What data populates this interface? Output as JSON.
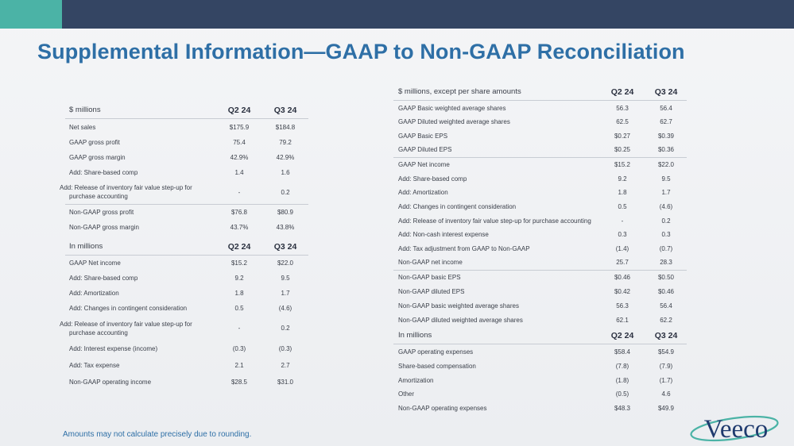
{
  "title": "Supplemental Information—GAAP to Non-GAAP Reconciliation",
  "footnote": "Amounts may not calculate precisely due to rounding.",
  "logo_text": "Veeco",
  "colors": {
    "topbar": "#344563",
    "accent": "#4bb3a6",
    "title": "#2e6fa6"
  },
  "left_top": {
    "header": "$ millions",
    "col1": "Q2 24",
    "col2": "Q3 24",
    "rows": [
      [
        "Net sales",
        "$175.9",
        "$184.8"
      ],
      [
        "GAAP gross profit",
        "75.4",
        "79.2"
      ],
      [
        "GAAP gross margin",
        "42.9%",
        "42.9%"
      ],
      [
        "Add: Share-based comp",
        "1.4",
        "1.6"
      ],
      [
        "Add: Release of inventory fair value step-up for purchase accounting",
        "-",
        "0.2"
      ],
      [
        "Non-GAAP gross profit",
        "$76.8",
        "$80.9"
      ],
      [
        "Non-GAAP gross margin",
        "43.7%",
        "43.8%"
      ]
    ]
  },
  "left_bottom": {
    "header": "In millions",
    "col1": "Q2 24",
    "col2": "Q3 24",
    "rows": [
      [
        "GAAP Net income",
        "$15.2",
        "$22.0"
      ],
      [
        "Add: Share-based comp",
        "9.2",
        "9.5"
      ],
      [
        "Add: Amortization",
        "1.8",
        "1.7"
      ],
      [
        "Add: Changes in contingent consideration",
        "0.5",
        "(4.6)"
      ],
      [
        "Add: Release of inventory fair value step-up for purchase accounting",
        "-",
        "0.2"
      ],
      [
        "Add: Interest expense (income)",
        "(0.3)",
        "(0.3)"
      ],
      [
        "Add: Tax expense",
        "2.1",
        "2.7"
      ],
      [
        "Non-GAAP operating income",
        "$28.5",
        "$31.0"
      ]
    ]
  },
  "right_top": {
    "header": "$ millions, except per share amounts",
    "col1": "Q2 24",
    "col2": "Q3 24",
    "rows": [
      [
        "GAAP Basic weighted average shares",
        "56.3",
        "56.4"
      ],
      [
        "GAAP Diluted weighted average shares",
        "62.5",
        "62.7"
      ],
      [
        "GAAP Basic EPS",
        "$0.27",
        "$0.39"
      ],
      [
        "GAAP Diluted EPS",
        "$0.25",
        "$0.36"
      ],
      [
        "GAAP Net income",
        "$15.2",
        "$22.0"
      ],
      [
        "Add: Share-based comp",
        "9.2",
        "9.5"
      ],
      [
        "Add: Amortization",
        "1.8",
        "1.7"
      ],
      [
        "Add: Changes in contingent consideration",
        "0.5",
        "(4.6)"
      ],
      [
        "Add: Release of inventory fair value step-up for purchase accounting",
        "-",
        "0.2"
      ],
      [
        "Add: Non-cash interest expense",
        "0.3",
        "0.3"
      ],
      [
        "Add: Tax adjustment from GAAP to Non-GAAP",
        "(1.4)",
        "(0.7)"
      ],
      [
        "Non-GAAP net income",
        "25.7",
        "28.3"
      ],
      [
        "Non-GAAP basic EPS",
        "$0.46",
        "$0.50"
      ],
      [
        "Non-GAAP diluted EPS",
        "$0.42",
        "$0.46"
      ],
      [
        "Non-GAAP basic weighted average shares",
        "56.3",
        "56.4"
      ],
      [
        "Non-GAAP diluted weighted average shares",
        "62.1",
        "62.2"
      ]
    ]
  },
  "right_bottom": {
    "header": "In millions",
    "col1": "Q2 24",
    "col2": "Q3 24",
    "rows": [
      [
        "GAAP operating expenses",
        "$58.4",
        "$54.9"
      ],
      [
        "Share-based compensation",
        "(7.8)",
        "(7.9)"
      ],
      [
        "Amortization",
        "(1.8)",
        "(1.7)"
      ],
      [
        "Other",
        "(0.5)",
        "4.6"
      ],
      [
        "Non-GAAP operating expenses",
        "$48.3",
        "$49.9"
      ]
    ]
  }
}
